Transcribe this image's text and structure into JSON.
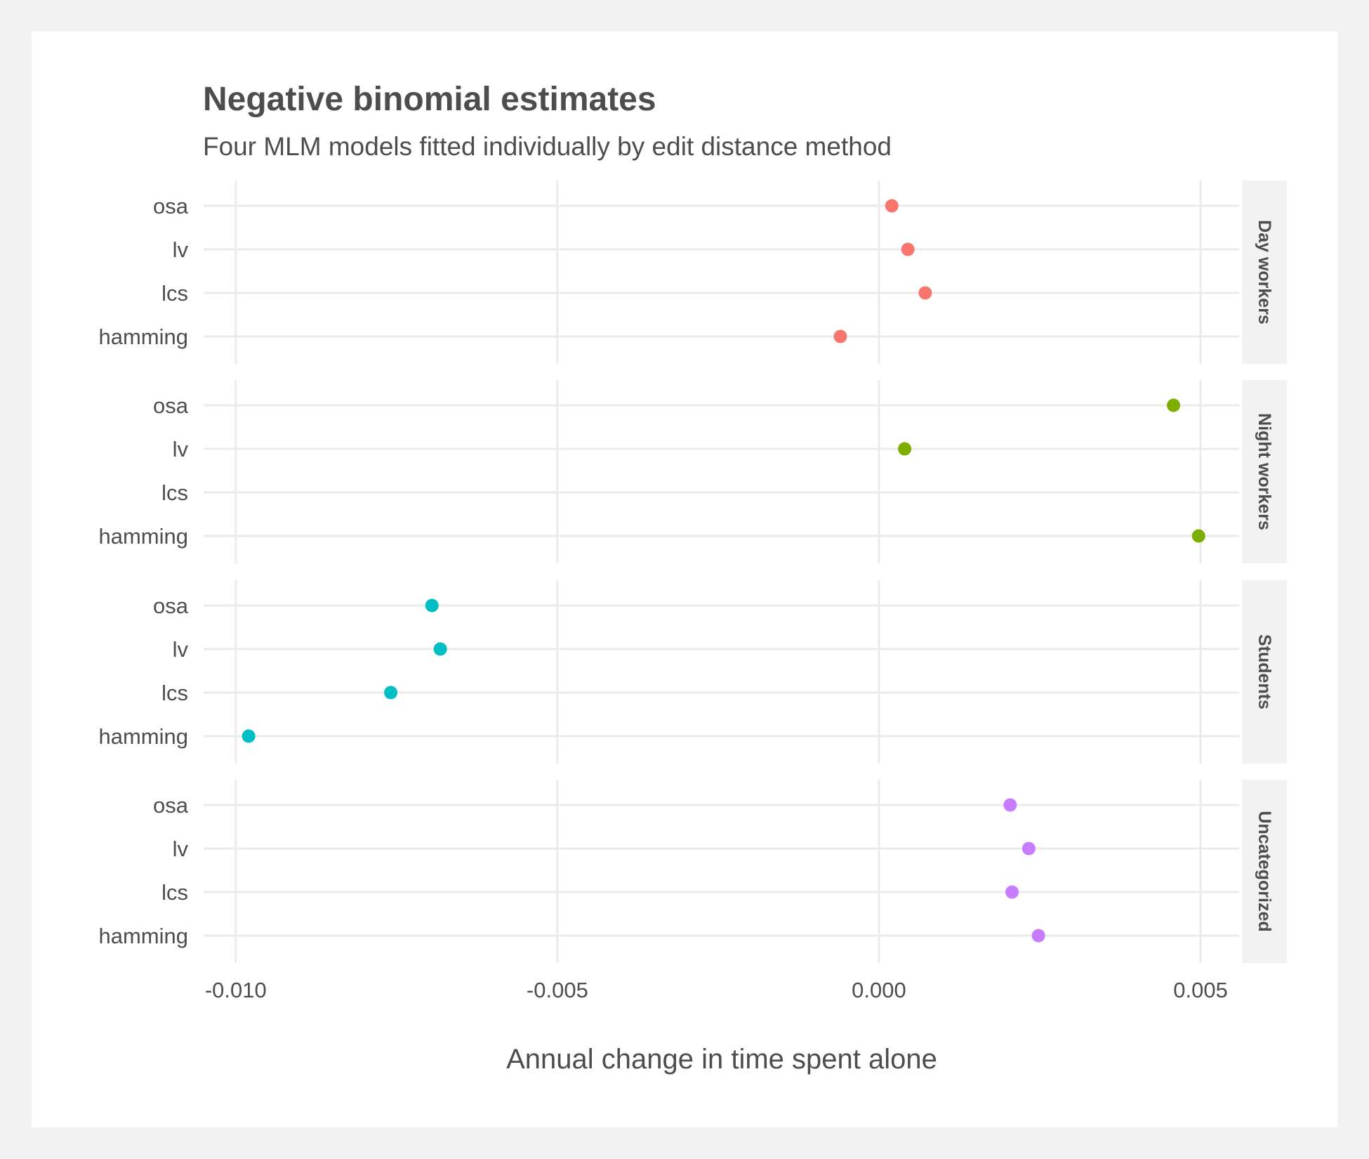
{
  "chart_data": {
    "type": "scatter",
    "title": "Negative binomial estimates",
    "subtitle": "Four MLM models fitted individually by edit distance method",
    "xlabel": "Annual change in time spent alone",
    "ylabel": "",
    "xlim": [
      -0.0105,
      0.0056
    ],
    "x_ticks": [
      -0.01,
      -0.005,
      0.0,
      0.005
    ],
    "x_tick_labels": [
      "-0.010",
      "-0.005",
      "0.000",
      "0.005"
    ],
    "y_categories": [
      "osa",
      "lv",
      "lcs",
      "hamming"
    ],
    "grid": true,
    "legend": "none",
    "facets": [
      {
        "name": "Day workers",
        "color": "#F8766D",
        "points": [
          {
            "method": "osa",
            "x": 0.0002
          },
          {
            "method": "lv",
            "x": 0.00045
          },
          {
            "method": "lcs",
            "x": 0.00072
          },
          {
            "method": "hamming",
            "x": -0.0006
          }
        ]
      },
      {
        "name": "Night workers",
        "color": "#7CAE00",
        "points": [
          {
            "method": "osa",
            "x": 0.00458
          },
          {
            "method": "lv",
            "x": 0.0004
          },
          {
            "method": "lcs",
            "x": null
          },
          {
            "method": "hamming",
            "x": 0.00497
          }
        ]
      },
      {
        "name": "Students",
        "color": "#00BFC4",
        "points": [
          {
            "method": "osa",
            "x": -0.00695
          },
          {
            "method": "lv",
            "x": -0.00682
          },
          {
            "method": "lcs",
            "x": -0.00759
          },
          {
            "method": "hamming",
            "x": -0.0098
          }
        ]
      },
      {
        "name": "Uncategorized",
        "color": "#C77CFF",
        "points": [
          {
            "method": "osa",
            "x": 0.00204
          },
          {
            "method": "lv",
            "x": 0.00233
          },
          {
            "method": "lcs",
            "x": 0.00207
          },
          {
            "method": "hamming",
            "x": 0.00248
          }
        ]
      }
    ]
  }
}
